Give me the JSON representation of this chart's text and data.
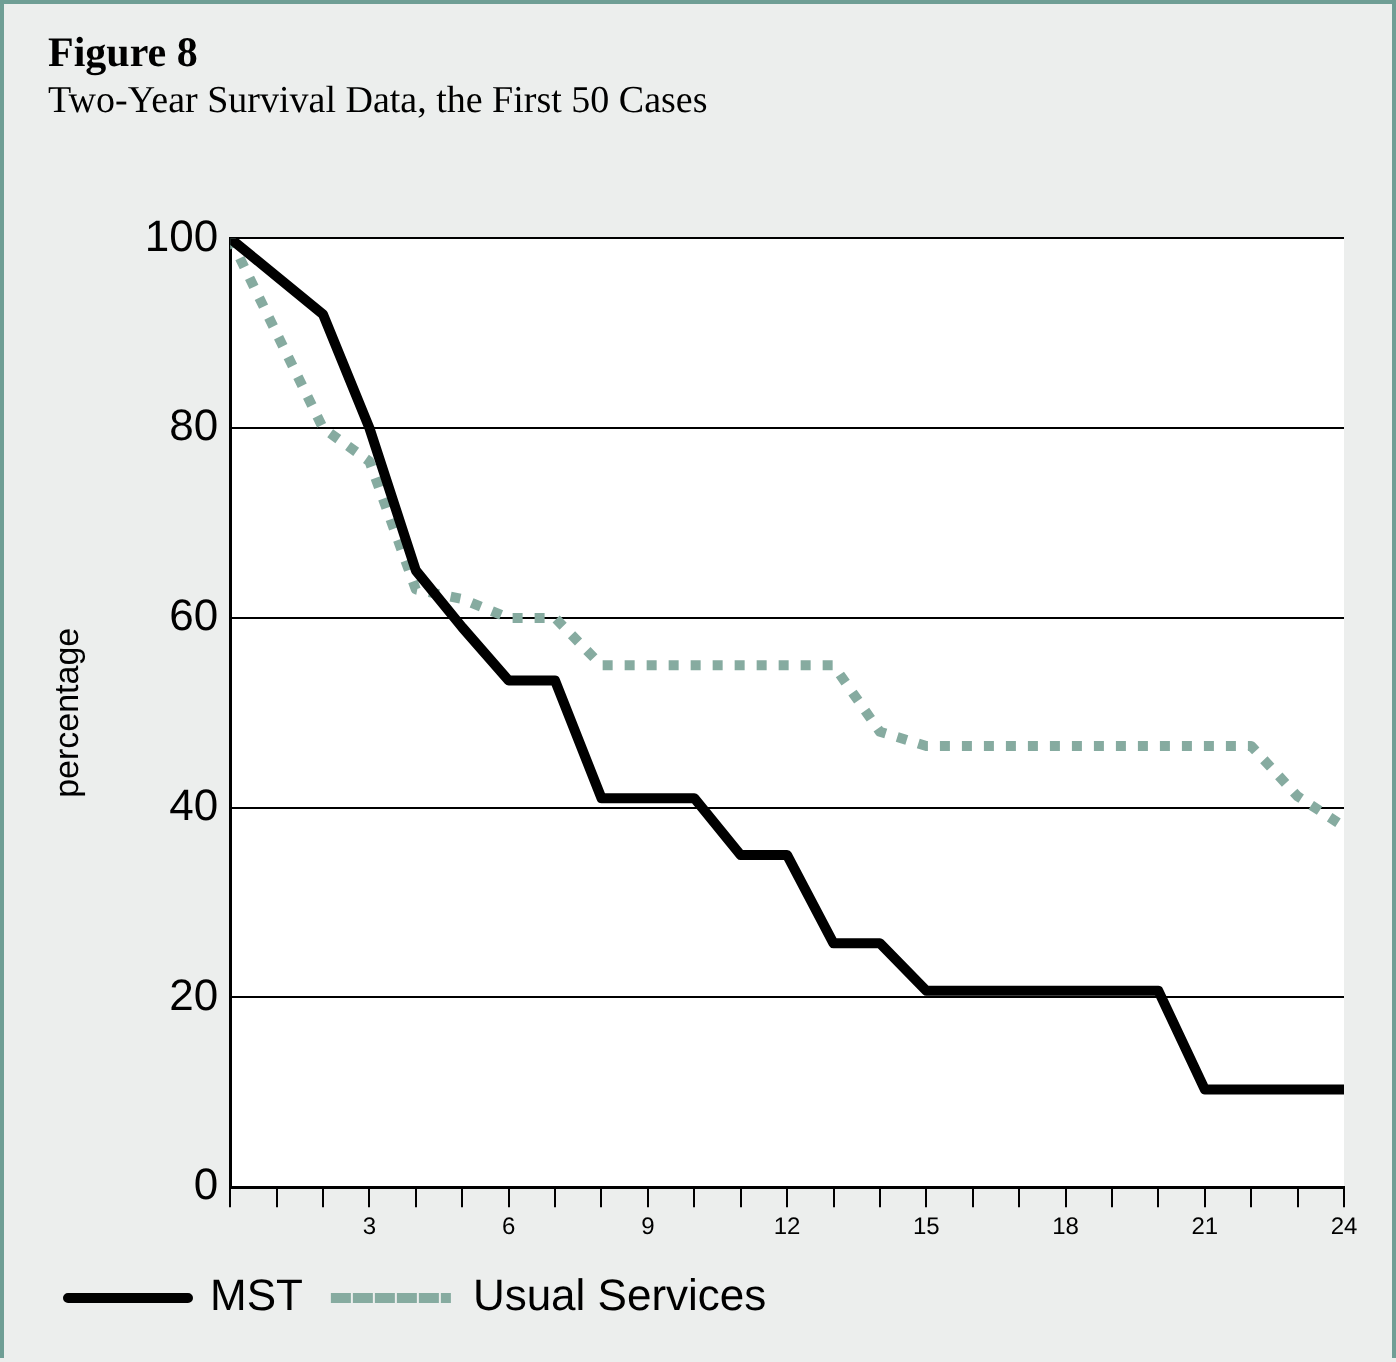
{
  "chart_data": {
    "type": "line",
    "title": "Figure 8",
    "subtitle": "Two-Year Survival Data, the First 50 Cases",
    "ylabel": "percentage",
    "x": [
      0,
      1,
      2,
      3,
      4,
      5,
      6,
      7,
      8,
      9,
      10,
      11,
      12,
      13,
      14,
      15,
      16,
      17,
      18,
      19,
      20,
      21,
      22,
      23,
      24
    ],
    "series": [
      {
        "name": "MST",
        "color": "#000000",
        "line_style": "solid",
        "values": [
          100,
          96,
          92,
          80,
          65,
          59,
          53.4,
          53.4,
          41,
          41,
          41,
          35,
          35,
          25.7,
          25.7,
          20.7,
          20.7,
          20.7,
          20.7,
          20.7,
          20.7,
          10.3,
          10.3,
          10.3,
          10.3
        ]
      },
      {
        "name": "Usual Services",
        "color": "#86aba0",
        "line_style": "dotted",
        "values": [
          100,
          90,
          80,
          76.5,
          63,
          62,
          60,
          60,
          55,
          55,
          55,
          55,
          55,
          55,
          48,
          46.5,
          46.5,
          46.5,
          46.5,
          46.5,
          46.5,
          46.5,
          46.5,
          41.2,
          38
        ]
      }
    ],
    "xlim": [
      0,
      24
    ],
    "xticks": [
      {
        "value": 0,
        "label": null
      },
      {
        "value": 1,
        "label": null
      },
      {
        "value": 2,
        "label": null
      },
      3,
      {
        "value": 4,
        "label": null
      },
      {
        "value": 5,
        "label": null
      },
      6,
      {
        "value": 7,
        "label": null
      },
      {
        "value": 8,
        "label": null
      },
      9,
      {
        "value": 10,
        "label": null
      },
      {
        "value": 11,
        "label": null
      },
      12,
      {
        "value": 13,
        "label": null
      },
      {
        "value": 14,
        "label": null
      },
      15,
      {
        "value": 16,
        "label": null
      },
      {
        "value": 17,
        "label": null
      },
      18,
      {
        "value": 19,
        "label": null
      },
      {
        "value": 20,
        "label": null
      },
      21,
      {
        "value": 22,
        "label": null
      },
      {
        "value": 23,
        "label": null
      },
      24
    ],
    "ylim": [
      0,
      100
    ],
    "yticks": [
      0,
      20,
      40,
      60,
      80,
      100
    ],
    "grid": "y",
    "legend": "bottom",
    "marker": "none"
  }
}
